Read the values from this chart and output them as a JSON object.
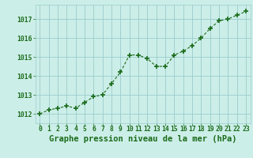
{
  "hours": [
    0,
    1,
    2,
    3,
    4,
    5,
    6,
    7,
    8,
    9,
    10,
    11,
    12,
    13,
    14,
    15,
    16,
    17,
    18,
    19,
    20,
    21,
    22,
    23
  ],
  "pressure": [
    1012.0,
    1012.2,
    1012.3,
    1012.4,
    1012.3,
    1012.6,
    1012.9,
    1013.0,
    1013.6,
    1014.2,
    1015.1,
    1015.1,
    1014.9,
    1014.5,
    1014.5,
    1015.1,
    1015.3,
    1015.6,
    1016.0,
    1016.5,
    1016.9,
    1017.0,
    1017.2,
    1017.4
  ],
  "line_color": "#1a6b1a",
  "marker_color": "#1a6b1a",
  "bg_color": "#cceee8",
  "grid_color": "#99cccc",
  "text_color": "#1a6b1a",
  "xlabel": "Graphe pression niveau de la mer (hPa)",
  "ylim": [
    1011.5,
    1017.75
  ],
  "yticks": [
    1012,
    1013,
    1014,
    1015,
    1016,
    1017
  ],
  "xticks": [
    0,
    1,
    2,
    3,
    4,
    5,
    6,
    7,
    8,
    9,
    10,
    11,
    12,
    13,
    14,
    15,
    16,
    17,
    18,
    19,
    20,
    21,
    22,
    23
  ],
  "xlabel_fontsize": 7.5,
  "tick_fontsize": 5.8,
  "marker_size": 4,
  "line_width": 0.8
}
